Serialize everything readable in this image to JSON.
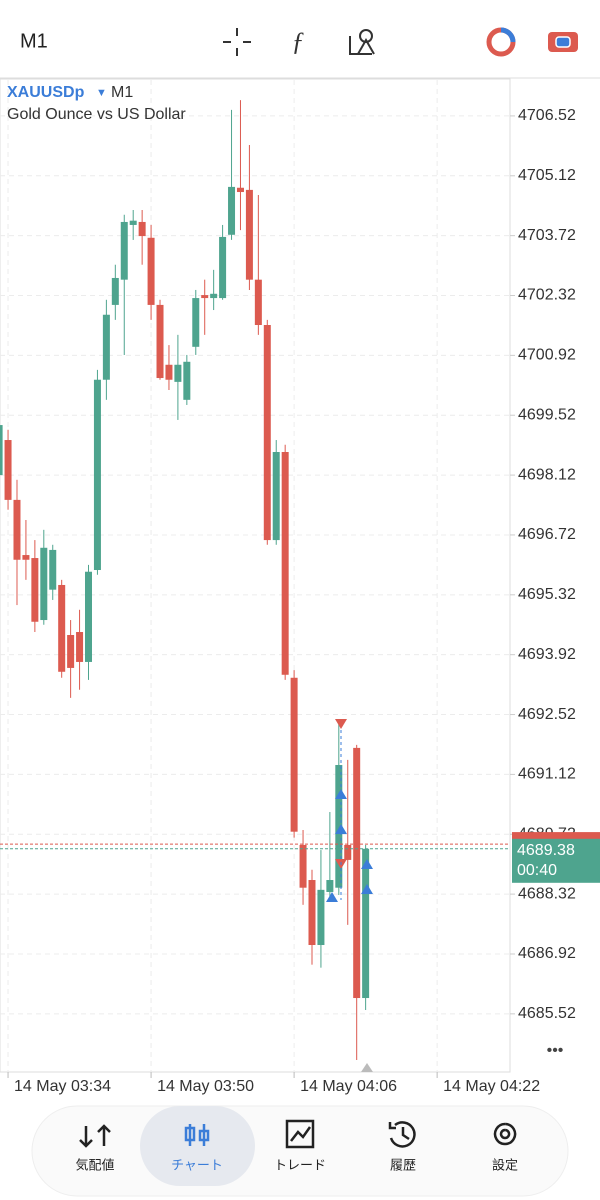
{
  "toolbar": {
    "timeframe": "M1"
  },
  "chart_data": {
    "type": "candlestick",
    "symbol": "XAUUSDp",
    "timeframe": "M1",
    "description": "Gold Ounce vs US Dollar",
    "x": [
      0,
      1,
      2,
      3,
      4,
      5,
      6,
      7,
      8,
      9,
      10,
      11,
      12,
      13,
      14,
      15,
      16,
      17,
      18,
      19,
      20,
      21,
      22,
      23,
      24,
      25,
      26,
      27,
      28,
      29,
      30,
      31,
      32,
      33,
      34,
      35,
      36,
      37,
      38,
      39,
      40,
      41
    ],
    "open": [
      4698.12,
      4698.94,
      4697.54,
      4696.25,
      4696.18,
      4694.73,
      4695.44,
      4695.55,
      4694.38,
      4694.45,
      4693.75,
      4695.9,
      4700.35,
      4702.1,
      4702.69,
      4703.97,
      4704.04,
      4703.67,
      4702.1,
      4700.7,
      4700.3,
      4699.88,
      4701.12,
      4702.33,
      4702.26,
      4702.26,
      4703.74,
      4704.84,
      4704.79,
      4702.69,
      4701.63,
      4696.6,
      4698.66,
      4693.38,
      4689.47,
      4688.65,
      4687.13,
      4688.37,
      4688.47,
      4689.47,
      4691.74,
      4685.89
    ],
    "high": [
      4699.41,
      4699.18,
      4698.01,
      4697.07,
      4696.6,
      4696.84,
      4696.49,
      4695.67,
      4694.73,
      4694.97,
      4696.02,
      4700.58,
      4702.22,
      4703.04,
      4704.21,
      4704.32,
      4704.32,
      4703.97,
      4702.22,
      4701.16,
      4701.4,
      4700.93,
      4702.45,
      4702.69,
      4702.92,
      4703.97,
      4706.66,
      4706.89,
      4705.84,
      4704.67,
      4701.75,
      4698.94,
      4698.83,
      4693.56,
      4689.82,
      4688.89,
      4689.35,
      4690.24,
      4692.39,
      4691.46,
      4691.81,
      4689.47
    ],
    "low": [
      4698.01,
      4697.31,
      4695.08,
      4695.67,
      4694.45,
      4694.62,
      4695.2,
      4693.38,
      4692.91,
      4693.1,
      4693.33,
      4695.79,
      4699.88,
      4701.75,
      4700.93,
      4703.62,
      4703.04,
      4701.75,
      4700.35,
      4700.11,
      4699.41,
      4699.76,
      4700.93,
      4701.4,
      4701.98,
      4702.22,
      4703.62,
      4703.85,
      4702.45,
      4701.4,
      4696.49,
      4696.49,
      4693.33,
      4689.64,
      4688.07,
      4686.67,
      4686.6,
      4688.23,
      4688.3,
      4687.6,
      4684.44,
      4685.61
    ],
    "close": [
      4699.29,
      4697.54,
      4696.14,
      4696.14,
      4694.69,
      4696.42,
      4696.37,
      4693.52,
      4693.61,
      4693.75,
      4695.86,
      4700.35,
      4701.87,
      4702.73,
      4704.04,
      4704.07,
      4703.71,
      4702.1,
      4700.39,
      4700.35,
      4700.7,
      4700.77,
      4702.26,
      4702.26,
      4702.36,
      4703.69,
      4704.86,
      4704.74,
      4702.69,
      4701.63,
      4696.6,
      4698.66,
      4693.45,
      4689.78,
      4688.47,
      4687.13,
      4688.42,
      4688.65,
      4691.34,
      4689.12,
      4685.89,
      4689.38
    ],
    "up_color": "#4ea48e",
    "down_color": "#dc5a4f",
    "xlim": [
      0.1,
      57.15
    ],
    "xticks": [
      {
        "value": 1,
        "label": "14 May 03:34"
      },
      {
        "value": 17,
        "label": "14 May 03:50"
      },
      {
        "value": 33,
        "label": "14 May 04:06"
      },
      {
        "value": 49,
        "label": "14 May 04:22"
      }
    ],
    "ylim": [
      4684.16,
      4707.36
    ],
    "yticks": [
      4706.52,
      4705.12,
      4703.72,
      4702.32,
      4700.92,
      4699.52,
      4698.12,
      4696.72,
      4695.32,
      4693.92,
      4692.52,
      4691.12,
      4689.72,
      4688.32,
      4686.92,
      4685.52
    ],
    "grid": true,
    "bid": 4689.38,
    "countdown": "00:40",
    "ask": 4689.49
  },
  "nav": {
    "items": [
      "気配値",
      "チャート",
      "トレード",
      "履歴",
      "設定"
    ],
    "active": 1
  }
}
